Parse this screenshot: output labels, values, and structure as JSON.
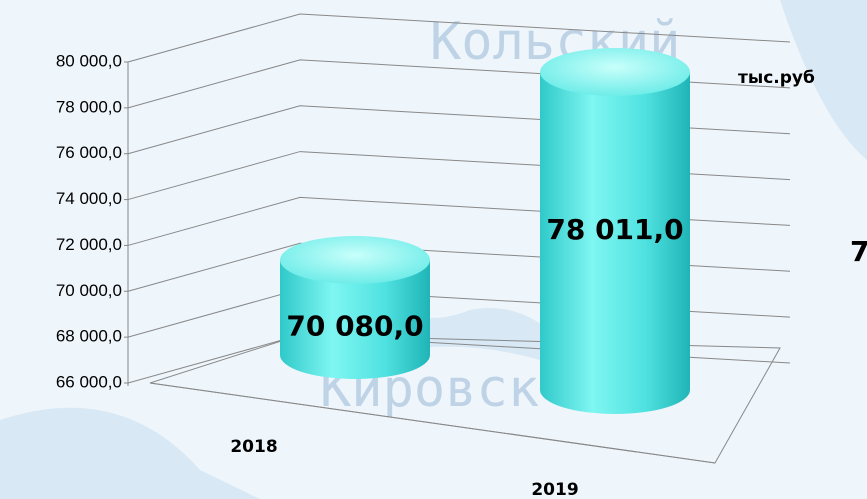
{
  "chart_data": {
    "type": "cylinder",
    "categories": [
      "2018",
      "2019"
    ],
    "values": [
      70080,
      78011
    ],
    "value_labels": [
      "70 080,0",
      "78 011,0"
    ],
    "color": "#5ce8e6",
    "ylim": [
      66000,
      80000
    ],
    "yticks": [
      {
        "value": 66000,
        "label": "66 000,0"
      },
      {
        "value": 68000,
        "label": "68 000,0"
      },
      {
        "value": 70000,
        "label": "70 000,0"
      },
      {
        "value": 72000,
        "label": "72 000,0"
      },
      {
        "value": 74000,
        "label": "74 000,0"
      },
      {
        "value": 76000,
        "label": "76 000,0"
      },
      {
        "value": 78000,
        "label": "78 000,0"
      },
      {
        "value": 80000,
        "label": "80 000,0"
      }
    ],
    "grid": true,
    "unit_label": "тыс.руб",
    "annotations": [
      "Кольский",
      "Кировск",
      "7"
    ]
  }
}
